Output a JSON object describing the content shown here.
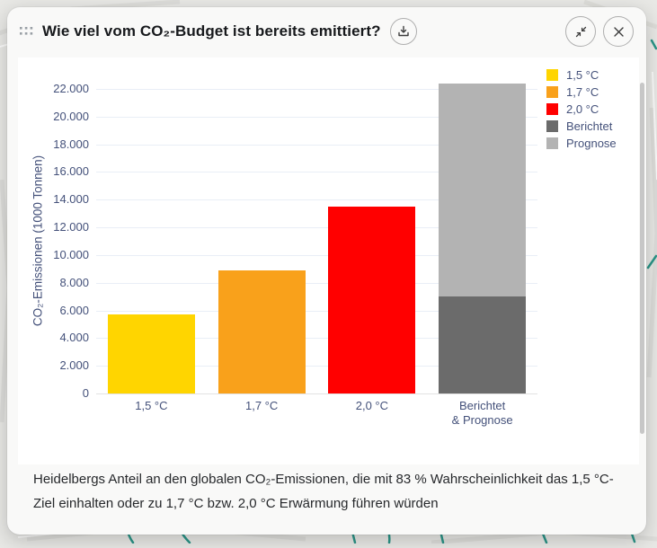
{
  "header": {
    "title": "Wie viel vom CO₂-Budget ist bereits emittiert?",
    "icons": {
      "drag": "drag-handle",
      "download": "download",
      "collapse": "collapse-window",
      "close": "close-window"
    }
  },
  "caption": "Heidelbergs Anteil an den globalen CO₂-Emissionen, die mit 83 % Wahrscheinlichkeit das 1,5 °C-Ziel einhalten oder zu 1,7 °C bzw. 2,0 °C Erwärmung führen würden",
  "chart_data": {
    "type": "bar",
    "title": "",
    "xlabel": "",
    "ylabel": "CO₂-Emissionen (1000 Tonnen)",
    "ylim": [
      0,
      22000
    ],
    "ytick_step": 2000,
    "yticks_labels": [
      "0",
      "2.000",
      "4.000",
      "6.000",
      "8.000",
      "10.000",
      "12.000",
      "14.000",
      "16.000",
      "18.000",
      "20.000",
      "22.000"
    ],
    "grid": true,
    "legend_position": "top-right",
    "categories": [
      "1,5 °C",
      "1,7 °C",
      "2,0 °C",
      "Berichtet & Prognose"
    ],
    "bars": [
      {
        "label": "1,5 °C",
        "segments": [
          {
            "name": "1,5 °C",
            "value": 5700,
            "color": "#FFD500"
          }
        ]
      },
      {
        "label": "1,7 °C",
        "segments": [
          {
            "name": "1,7 °C",
            "value": 8900,
            "color": "#F9A11B"
          }
        ]
      },
      {
        "label": "2,0 °C",
        "segments": [
          {
            "name": "2,0 °C",
            "value": 13500,
            "color": "#FF0000"
          }
        ]
      },
      {
        "label": "Berichtet\n& Prognose",
        "segments": [
          {
            "name": "Berichtet",
            "value": 7000,
            "color": "#6B6B6B"
          },
          {
            "name": "Prognose",
            "value": 15400,
            "color": "#B3B3B3"
          }
        ]
      }
    ],
    "legend": [
      {
        "label": "1,5 °C",
        "color": "#FFD500"
      },
      {
        "label": "1,7 °C",
        "color": "#F9A11B"
      },
      {
        "label": "2,0 °C",
        "color": "#FF0000"
      },
      {
        "label": "Berichtet",
        "color": "#6B6B6B"
      },
      {
        "label": "Prognose",
        "color": "#B3B3B3"
      }
    ]
  },
  "colors": {
    "accent_teal_map": "#2b9487",
    "axis_text": "#44517a",
    "panel": "#ffffff",
    "modal_bg": "#f9f9f8"
  }
}
